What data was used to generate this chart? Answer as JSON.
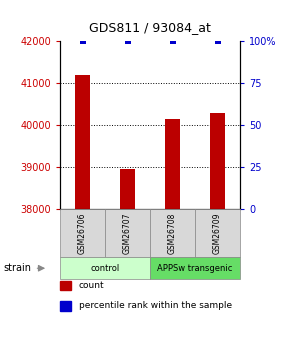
{
  "title": "GDS811 / 93084_at",
  "samples": [
    "GSM26706",
    "GSM26707",
    "GSM26708",
    "GSM26709"
  ],
  "counts": [
    41200,
    38950,
    40150,
    40300
  ],
  "percentiles": [
    100,
    100,
    100,
    100
  ],
  "ylim_left": [
    38000,
    42000
  ],
  "ylim_right": [
    0,
    100
  ],
  "yticks_left": [
    38000,
    39000,
    40000,
    41000,
    42000
  ],
  "yticks_right": [
    0,
    25,
    50,
    75,
    100
  ],
  "ytick_labels_right": [
    "0",
    "25",
    "50",
    "75",
    "100%"
  ],
  "bar_color": "#bb0000",
  "dot_color": "#0000cc",
  "groups": [
    {
      "label": "control",
      "indices": [
        0,
        1
      ],
      "color": "#ccffcc"
    },
    {
      "label": "APPSw transgenic",
      "indices": [
        2,
        3
      ],
      "color": "#66dd66"
    }
  ],
  "strain_label": "strain",
  "legend_items": [
    {
      "color": "#bb0000",
      "label": "count"
    },
    {
      "color": "#0000cc",
      "label": "percentile rank within the sample"
    }
  ],
  "bar_width": 0.35,
  "dot_marker_size": 22,
  "left_tick_color": "#cc0000",
  "right_tick_color": "#0000cc"
}
